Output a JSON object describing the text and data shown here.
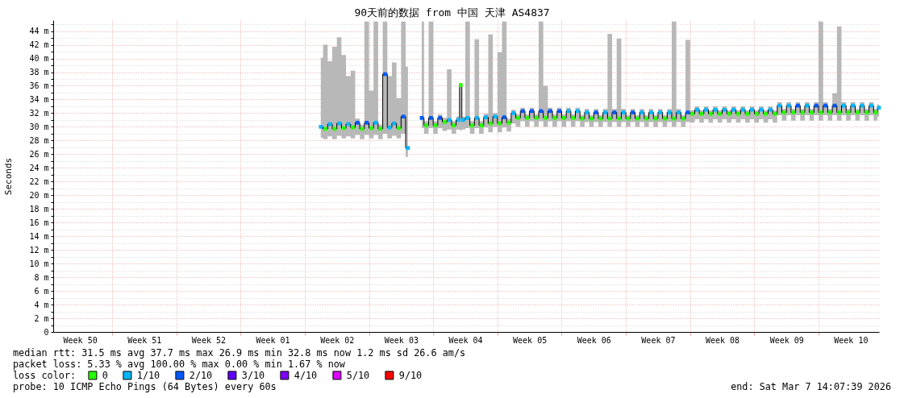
{
  "chart_data": {
    "type": "step",
    "title": "90天前的数据 from 中国 天津 AS4837",
    "ylabel": "Seconds",
    "legend_title": "loss color:",
    "annotations": [
      "median rtt:  31.5 ms avg  37.7 ms max  26.9 ms min  32.8 ms now  1.2 ms sd  26.6   am/s",
      "packet loss: 5.33 % avg  100.00 % max  0.00 % min   1.67 % now",
      "probe:       10 ICMP Echo Pings (64 Bytes) every 60s",
      "end: Sat Mar  7 14:07:39 2026"
    ],
    "xlim": [
      "2025-12-07T14:07",
      "2026-03-07T14:07"
    ],
    "ylim": [
      0,
      45.6
    ],
    "xticks": [
      {
        "value": "2025-12-10T12:00",
        "label": "Week 50"
      },
      {
        "value": "2025-12-14",
        "label": null
      },
      {
        "value": "2025-12-17T12:00",
        "label": "Week 51"
      },
      {
        "value": "2025-12-21",
        "label": null
      },
      {
        "value": "2025-12-24T12:00",
        "label": "Week 52"
      },
      {
        "value": "2025-12-28",
        "label": null
      },
      {
        "value": "2025-12-31T12:00",
        "label": "Week 01"
      },
      {
        "value": "2026-01-04",
        "label": null
      },
      {
        "value": "2026-01-07T12:00",
        "label": "Week 02"
      },
      {
        "value": "2026-01-11",
        "label": null
      },
      {
        "value": "2026-01-14T12:00",
        "label": "Week 03"
      },
      {
        "value": "2026-01-18",
        "label": null
      },
      {
        "value": "2026-01-21T12:00",
        "label": "Week 04"
      },
      {
        "value": "2026-01-25",
        "label": null
      },
      {
        "value": "2026-01-28T12:00",
        "label": "Week 05"
      },
      {
        "value": "2026-02-01",
        "label": null
      },
      {
        "value": "2026-02-04T12:00",
        "label": "Week 06"
      },
      {
        "value": "2026-02-08",
        "label": null
      },
      {
        "value": "2026-02-11T12:00",
        "label": "Week 07"
      },
      {
        "value": "2026-02-15",
        "label": null
      },
      {
        "value": "2026-02-18T12:00",
        "label": "Week 08"
      },
      {
        "value": "2026-02-22",
        "label": null
      },
      {
        "value": "2026-02-25T12:00",
        "label": "Week 09"
      },
      {
        "value": "2026-03-01",
        "label": null
      },
      {
        "value": "2026-03-04T12:00",
        "label": "Week 10"
      }
    ],
    "yticks": [
      0,
      {
        "value": 1,
        "label": null
      },
      {
        "value": 2,
        "label": "2 m"
      },
      {
        "value": 3,
        "label": null
      },
      {
        "value": 4,
        "label": "4 m"
      },
      {
        "value": 5,
        "label": null
      },
      {
        "value": 6,
        "label": "6 m"
      },
      {
        "value": 7,
        "label": null
      },
      {
        "value": 8,
        "label": "8 m"
      },
      {
        "value": 9,
        "label": null
      },
      {
        "value": 10,
        "label": "10 m"
      },
      {
        "value": 11,
        "label": null
      },
      {
        "value": 12,
        "label": "12 m"
      },
      {
        "value": 13,
        "label": null
      },
      {
        "value": 14,
        "label": "14 m"
      },
      {
        "value": 15,
        "label": null
      },
      {
        "value": 16,
        "label": "16 m"
      },
      {
        "value": 17,
        "label": null
      },
      {
        "value": 18,
        "label": "18 m"
      },
      {
        "value": 19,
        "label": null
      },
      {
        "value": 20,
        "label": "20 m"
      },
      {
        "value": 21,
        "label": null
      },
      {
        "value": 22,
        "label": "22 m"
      },
      {
        "value": 23,
        "label": null
      },
      {
        "value": 24,
        "label": "24 m"
      },
      {
        "value": 25,
        "label": null
      },
      {
        "value": 26,
        "label": "26 m"
      },
      {
        "value": 27,
        "label": null
      },
      {
        "value": 28,
        "label": "28 m"
      },
      {
        "value": 29,
        "label": null
      },
      {
        "value": 30,
        "label": "30 m"
      },
      {
        "value": 31,
        "label": null
      },
      {
        "value": 32,
        "label": "32 m"
      },
      {
        "value": 33,
        "label": null
      },
      {
        "value": 34,
        "label": "34 m"
      },
      {
        "value": 35,
        "label": null
      },
      {
        "value": 36,
        "label": "36 m"
      },
      {
        "value": 37,
        "label": null
      },
      {
        "value": 38,
        "label": "38 m"
      },
      {
        "value": 39,
        "label": null
      },
      {
        "value": 40,
        "label": "40 m"
      },
      {
        "value": 41,
        "label": null
      },
      {
        "value": 42,
        "label": "42 m"
      },
      {
        "value": 43,
        "label": null
      },
      {
        "value": 44,
        "label": "44 m"
      },
      {
        "value": 45,
        "label": null
      }
    ],
    "grid": true,
    "legend": "bottom left",
    "x": [
      "2026-01-05T18:00",
      "2026-01-06T06:00",
      "2026-01-06T18:00",
      "2026-01-07T06:00",
      "2026-01-07T18:00",
      "2026-01-08T06:00",
      "2026-01-08T18:00",
      "2026-01-09T06:00",
      "2026-01-09T18:00",
      "2026-01-10T06:00",
      "2026-01-10T18:00",
      "2026-01-11T06:00",
      "2026-01-11T18:00",
      "2026-01-12T06:00",
      "2026-01-12T18:00",
      "2026-01-13T06:00",
      "2026-01-13T18:00",
      "2026-01-14T06:00",
      "2026-01-14T18:00",
      "2026-01-15T06:00",
      "2026-01-15T18:00",
      "2026-01-16T06:00",
      "2026-01-16T18:00",
      "2026-01-17T06:00",
      "2026-01-17T18:00",
      "2026-01-18T06:00",
      "2026-01-18T18:00",
      "2026-01-19T06:00",
      "2026-01-19T18:00",
      "2026-01-20T06:00",
      "2026-01-20T18:00",
      "2026-01-21T00:00",
      "2026-01-21T06:00",
      "2026-01-21T18:00",
      "2026-01-22T06:00",
      "2026-01-22T18:00",
      "2026-01-23T06:00",
      "2026-01-23T18:00",
      "2026-01-24T06:00",
      "2026-01-24T18:00",
      "2026-01-25T06:00",
      "2026-01-25T18:00",
      "2026-01-26T06:00",
      "2026-01-26T18:00",
      "2026-01-27T06:00",
      "2026-01-27T18:00",
      "2026-01-28T06:00",
      "2026-01-28T18:00",
      "2026-01-29T06:00",
      "2026-01-29T18:00",
      "2026-01-30T06:00",
      "2026-01-30T18:00",
      "2026-01-31T06:00",
      "2026-01-31T18:00",
      "2026-02-01T06:00",
      "2026-02-01T18:00",
      "2026-02-02T06:00",
      "2026-02-02T18:00",
      "2026-02-03T06:00",
      "2026-02-03T18:00",
      "2026-02-04T06:00",
      "2026-02-04T18:00",
      "2026-02-05T06:00",
      "2026-02-05T18:00",
      "2026-02-06T06:00",
      "2026-02-06T18:00",
      "2026-02-07T06:00",
      "2026-02-07T18:00",
      "2026-02-08T06:00",
      "2026-02-08T18:00",
      "2026-02-09T06:00",
      "2026-02-09T18:00",
      "2026-02-10T06:00",
      "2026-02-10T18:00",
      "2026-02-11T06:00",
      "2026-02-11T18:00",
      "2026-02-12T06:00",
      "2026-02-12T18:00",
      "2026-02-13T06:00",
      "2026-02-13T18:00",
      "2026-02-14T06:00",
      "2026-02-14T18:00",
      "2026-02-15T06:00",
      "2026-02-15T18:00",
      "2026-02-16T06:00",
      "2026-02-16T18:00",
      "2026-02-17T06:00",
      "2026-02-17T18:00",
      "2026-02-18T06:00",
      "2026-02-18T18:00",
      "2026-02-19T06:00",
      "2026-02-19T18:00",
      "2026-02-20T06:00",
      "2026-02-20T18:00",
      "2026-02-21T06:00",
      "2026-02-21T18:00",
      "2026-02-22T06:00",
      "2026-02-22T18:00",
      "2026-02-23T06:00",
      "2026-02-23T18:00",
      "2026-02-24T06:00",
      "2026-02-24T18:00",
      "2026-02-25T06:00",
      "2026-02-25T18:00",
      "2026-02-26T06:00",
      "2026-02-26T18:00",
      "2026-02-27T06:00",
      "2026-02-27T18:00",
      "2026-02-28T06:00",
      "2026-02-28T18:00",
      "2026-03-01T06:00",
      "2026-03-01T18:00",
      "2026-03-02T06:00",
      "2026-03-02T18:00",
      "2026-03-03T06:00",
      "2026-03-03T18:00",
      "2026-03-04T06:00",
      "2026-03-04T18:00",
      "2026-03-05T06:00",
      "2026-03-05T18:00",
      "2026-03-06T06:00",
      "2026-03-06T18:00",
      "2026-03-07T06:00",
      "2026-03-07T14:00"
    ],
    "series": [
      {
        "color": "#000000",
        "values": [
          30.0,
          29.7,
          30.4,
          29.7,
          30.5,
          29.8,
          30.4,
          29.9,
          30.6,
          29.7,
          30.6,
          29.8,
          30.6,
          29.7,
          37.7,
          29.9,
          30.5,
          29.8,
          31.5,
          26.9,
          null,
          null,
          31.3,
          30.2,
          31.3,
          30.2,
          31.3,
          30.7,
          31.0,
          30.2,
          31.0,
          36.1,
          31.0,
          31.3,
          30.2,
          31.3,
          30.2,
          31.4,
          30.5,
          31.5,
          30.5,
          31.4,
          30.6,
          32.0,
          31.3,
          32.3,
          31.3,
          32.3,
          31.3,
          32.3,
          31.3,
          32.3,
          31.3,
          32.3,
          31.3,
          32.3,
          31.3,
          32.3,
          31.2,
          32.1,
          31.2,
          32.1,
          31.2,
          32.1,
          31.2,
          32.1,
          31.2,
          32.1,
          31.2,
          32.1,
          31.2,
          32.1,
          31.2,
          32.1,
          31.2,
          32.1,
          31.2,
          32.1,
          31.2,
          32.1,
          31.2,
          32.1,
          31.9,
          32.5,
          31.9,
          32.5,
          31.9,
          32.5,
          31.9,
          32.5,
          31.9,
          32.5,
          31.9,
          32.5,
          31.9,
          32.5,
          31.9,
          32.5,
          31.9,
          32.5,
          31.9,
          33.1,
          32.1,
          33.1,
          32.1,
          33.1,
          32.1,
          33.1,
          32.1,
          33.1,
          32.1,
          33.1,
          32.1,
          33.1,
          32.1,
          33.1,
          32.1,
          33.1,
          32.1,
          33.1,
          32.1,
          33.1,
          32.1,
          32.8
        ],
        "upper": [
          40.1,
          42.0,
          39.6,
          41.7,
          43.1,
          40.5,
          37.4,
          38.2,
          31.2,
          30.3,
          45.4,
          35.3,
          45.4,
          30.3,
          45.4,
          37.4,
          39.4,
          34.2,
          45.4,
          38.8,
          null,
          null,
          45.4,
          30.8,
          45.4,
          30.8,
          31.8,
          31.3,
          38.4,
          30.8,
          31.5,
          36.4,
          31.5,
          45.4,
          30.8,
          42.8,
          30.8,
          31.9,
          43.5,
          32.0,
          40.9,
          45.4,
          31.2,
          32.5,
          31.8,
          32.8,
          31.8,
          32.8,
          31.8,
          45.4,
          36.0,
          32.8,
          31.8,
          32.8,
          31.8,
          32.8,
          31.8,
          32.8,
          31.7,
          32.6,
          31.7,
          32.6,
          31.7,
          32.6,
          43.6,
          32.6,
          42.9,
          32.6,
          31.7,
          32.6,
          31.7,
          32.6,
          31.7,
          32.6,
          31.7,
          32.6,
          31.7,
          32.6,
          45.4,
          32.6,
          31.7,
          42.7,
          32.4,
          33.0,
          32.4,
          33.0,
          32.4,
          33.0,
          32.4,
          33.0,
          32.4,
          33.0,
          32.4,
          33.0,
          32.4,
          33.0,
          32.4,
          33.0,
          32.4,
          33.0,
          32.4,
          33.6,
          32.6,
          33.6,
          32.6,
          33.6,
          32.6,
          33.6,
          32.6,
          33.6,
          45.4,
          33.6,
          32.6,
          34.9,
          44.7,
          33.6,
          32.6,
          33.6,
          32.6,
          33.6,
          32.6,
          33.6,
          32.6,
          33.3
        ],
        "lower": [
          28.4,
          28.2,
          28.6,
          28.2,
          28.7,
          28.3,
          28.6,
          28.3,
          28.8,
          28.2,
          28.8,
          28.3,
          28.8,
          28.2,
          29.0,
          28.3,
          28.7,
          28.3,
          29.0,
          25.6,
          null,
          null,
          29.8,
          29.0,
          29.8,
          29.0,
          29.8,
          29.4,
          29.6,
          29.0,
          29.6,
          29.5,
          29.6,
          29.8,
          29.0,
          29.8,
          29.0,
          29.9,
          29.2,
          30.0,
          29.2,
          29.9,
          29.3,
          30.5,
          30.0,
          30.8,
          30.0,
          30.8,
          30.0,
          30.8,
          30.0,
          30.8,
          30.0,
          30.8,
          30.0,
          30.8,
          30.0,
          30.8,
          30.0,
          30.7,
          30.0,
          30.7,
          30.0,
          30.7,
          30.0,
          30.7,
          30.0,
          30.7,
          30.0,
          30.7,
          30.0,
          30.7,
          30.0,
          30.7,
          30.0,
          30.7,
          30.0,
          30.7,
          30.0,
          30.7,
          30.0,
          30.7,
          30.6,
          31.1,
          30.6,
          31.1,
          30.6,
          31.1,
          30.6,
          31.1,
          30.6,
          31.1,
          30.6,
          31.1,
          30.6,
          31.1,
          30.6,
          31.1,
          30.6,
          31.1,
          30.6,
          31.7,
          30.9,
          31.7,
          30.9,
          31.7,
          30.9,
          31.7,
          30.9,
          31.7,
          30.9,
          31.7,
          30.9,
          31.7,
          30.9,
          31.7,
          30.9,
          31.7,
          30.9,
          31.7,
          30.9,
          31.7,
          30.9,
          31.5
        ]
      },
      {
        "name": "0",
        "type": "scatter",
        "marker": "square",
        "color": "#26ff00",
        "x": [
          "2026-01-06T06:00",
          "2026-01-07T06:00",
          "2026-01-08T06:00",
          "2026-01-09T06:00",
          "2026-01-10T06:00",
          "2026-01-11T06:00",
          "2026-01-12T06:00",
          "2026-01-14T06:00",
          "2026-01-17T06:00",
          "2026-01-18T06:00",
          "2026-01-19T06:00",
          "2026-01-20T06:00",
          "2026-01-21T00:00",
          "2026-01-22T06:00",
          "2026-01-23T06:00",
          "2026-01-24T06:00",
          "2026-01-25T06:00",
          "2026-01-26T06:00",
          "2026-01-27T06:00",
          "2026-01-28T06:00",
          "2026-01-29T06:00",
          "2026-01-30T06:00",
          "2026-01-31T06:00",
          "2026-02-01T06:00",
          "2026-02-02T06:00",
          "2026-02-03T06:00",
          "2026-02-04T06:00",
          "2026-02-05T06:00",
          "2026-02-06T06:00",
          "2026-02-07T06:00",
          "2026-02-08T06:00",
          "2026-02-09T06:00",
          "2026-02-10T06:00",
          "2026-02-11T06:00",
          "2026-02-12T06:00",
          "2026-02-13T06:00",
          "2026-02-14T06:00",
          "2026-02-15T06:00",
          "2026-02-16T06:00",
          "2026-02-17T06:00",
          "2026-02-18T06:00",
          "2026-02-19T06:00",
          "2026-02-20T06:00",
          "2026-02-21T06:00",
          "2026-02-22T06:00",
          "2026-02-23T06:00",
          "2026-02-24T06:00",
          "2026-02-25T06:00",
          "2026-02-26T06:00",
          "2026-02-27T06:00",
          "2026-02-28T06:00",
          "2026-03-01T06:00",
          "2026-03-02T06:00",
          "2026-03-03T06:00",
          "2026-03-04T06:00",
          "2026-03-05T06:00",
          "2026-03-06T06:00",
          "2026-03-07T06:00"
        ],
        "values": [
          29.7,
          29.7,
          29.8,
          29.9,
          29.7,
          29.8,
          29.7,
          29.8,
          30.2,
          30.2,
          30.7,
          30.2,
          36.1,
          30.2,
          30.2,
          30.5,
          30.5,
          30.6,
          31.3,
          31.3,
          31.3,
          31.3,
          31.3,
          31.3,
          31.3,
          31.2,
          31.2,
          31.2,
          31.2,
          31.2,
          31.2,
          31.2,
          31.2,
          31.2,
          31.2,
          31.2,
          31.2,
          31.9,
          31.9,
          31.9,
          31.9,
          31.9,
          31.9,
          31.9,
          31.9,
          31.9,
          31.9,
          32.1,
          32.1,
          32.1,
          32.1,
          32.1,
          32.1,
          32.1,
          32.1,
          32.1,
          32.1,
          32.1
        ]
      },
      {
        "name": "1/10",
        "type": "scatter",
        "marker": "square",
        "color": "#00b8ff",
        "x": [
          "2026-01-05T18:00",
          "2026-01-06T18:00",
          "2026-01-07T18:00",
          "2026-01-08T18:00",
          "2026-01-11T18:00",
          "2026-01-13T06:00",
          "2026-01-13T18:00",
          "2026-01-15T06:00",
          "2026-01-19T18:00",
          "2026-01-20T18:00",
          "2026-01-21T06:00",
          "2026-01-21T18:00",
          "2026-01-22T18:00",
          "2026-01-23T18:00",
          "2026-01-24T18:00",
          "2026-01-26T18:00",
          "2026-02-01T18:00",
          "2026-02-02T18:00",
          "2026-02-03T18:00",
          "2026-02-05T18:00",
          "2026-02-07T18:00",
          "2026-02-09T18:00",
          "2026-02-10T18:00",
          "2026-02-11T18:00",
          "2026-02-12T18:00",
          "2026-02-13T18:00",
          "2026-02-15T18:00",
          "2026-02-16T18:00",
          "2026-02-17T18:00",
          "2026-02-18T18:00",
          "2026-02-19T18:00",
          "2026-02-20T18:00",
          "2026-02-21T18:00",
          "2026-02-22T18:00",
          "2026-02-23T18:00",
          "2026-02-24T18:00",
          "2026-02-25T18:00",
          "2026-02-27T18:00",
          "2026-03-03T18:00",
          "2026-03-04T18:00",
          "2026-03-05T18:00",
          "2026-03-06T18:00",
          "2026-03-07T14:00"
        ],
        "values": [
          30.0,
          30.4,
          30.5,
          30.4,
          30.6,
          29.9,
          30.5,
          26.9,
          31.0,
          31.0,
          31.0,
          31.3,
          31.3,
          31.4,
          31.5,
          32.0,
          32.3,
          32.3,
          32.1,
          32.1,
          32.1,
          32.1,
          32.1,
          32.1,
          32.1,
          32.1,
          32.5,
          32.5,
          32.5,
          32.5,
          32.5,
          32.5,
          32.5,
          32.5,
          32.5,
          33.1,
          33.1,
          33.1,
          33.1,
          33.1,
          33.1,
          33.1,
          32.8
        ]
      },
      {
        "name": "2/10",
        "type": "scatter",
        "marker": "square",
        "color": "#0059ff",
        "x": [
          "2026-01-09T18:00",
          "2026-01-10T18:00",
          "2026-01-12T18:00",
          "2026-01-14T18:00",
          "2026-01-16T18:00",
          "2026-01-17T18:00",
          "2026-01-18T18:00",
          "2026-01-25T18:00",
          "2026-01-27T18:00",
          "2026-01-28T18:00",
          "2026-01-29T18:00",
          "2026-01-30T18:00",
          "2026-01-31T18:00",
          "2026-02-04T18:00",
          "2026-02-06T18:00",
          "2026-02-08T18:00",
          "2026-02-14T18:00",
          "2026-02-26T18:00",
          "2026-02-28T18:00",
          "2026-03-01T18:00",
          "2026-03-02T18:00"
        ],
        "values": [
          30.6,
          30.6,
          37.7,
          31.5,
          31.3,
          31.3,
          31.3,
          31.4,
          32.3,
          32.3,
          32.3,
          32.3,
          32.3,
          32.1,
          32.1,
          32.1,
          32.1,
          33.1,
          33.1,
          33.1,
          33.1
        ]
      },
      {
        "name": "3/10",
        "type": "scatter",
        "marker": "square",
        "color": "#5e00ff",
        "values": [
          null,
          null,
          null,
          null,
          null,
          null,
          null,
          null,
          null,
          null,
          null,
          null,
          null,
          null,
          null,
          null,
          null,
          null,
          null,
          null,
          null,
          null,
          null,
          null,
          null,
          null,
          null,
          null,
          null,
          null,
          null,
          null,
          null,
          null,
          null,
          null,
          null,
          null,
          null,
          null,
          null,
          null,
          null,
          null,
          null,
          null,
          null,
          null,
          null,
          null,
          null,
          null,
          null,
          null,
          null,
          null,
          null,
          null,
          null,
          null,
          null,
          null,
          null,
          null,
          null,
          null,
          null,
          null,
          null,
          null,
          null,
          null,
          null,
          null,
          null,
          null,
          null,
          null,
          null,
          null,
          null,
          null,
          null,
          null,
          null,
          null,
          null,
          null,
          null,
          null,
          null,
          null,
          null,
          null,
          null,
          null,
          null,
          null,
          null,
          null,
          null,
          null,
          null,
          null,
          null,
          null,
          null,
          null,
          null,
          null,
          null,
          null,
          null,
          null,
          null,
          null,
          null,
          null,
          null,
          null,
          null,
          null,
          null,
          null
        ]
      },
      {
        "name": "4/10",
        "type": "scatter",
        "marker": "square",
        "color": "#7e00ff",
        "values": [
          null,
          null,
          null,
          null,
          null,
          null,
          null,
          null,
          null,
          null,
          null,
          null,
          null,
          null,
          null,
          null,
          null,
          null,
          null,
          null,
          null,
          null,
          null,
          null,
          null,
          null,
          null,
          null,
          null,
          null,
          null,
          null,
          null,
          null,
          null,
          null,
          null,
          null,
          null,
          null,
          null,
          null,
          null,
          null,
          null,
          null,
          null,
          null,
          null,
          null,
          null,
          null,
          null,
          null,
          null,
          null,
          null,
          null,
          null,
          null,
          null,
          null,
          null,
          null,
          null,
          null,
          null,
          null,
          null,
          null,
          null,
          null,
          null,
          null,
          null,
          null,
          null,
          null,
          null,
          null,
          null,
          null,
          null,
          null,
          null,
          null,
          null,
          null,
          null,
          null,
          null,
          null,
          null,
          null,
          null,
          null,
          null,
          null,
          null,
          null,
          null,
          null,
          null,
          null,
          null,
          null,
          null,
          null,
          null,
          null,
          null,
          null,
          null,
          null,
          null,
          null,
          null,
          null,
          null,
          null,
          null,
          null,
          null,
          null
        ]
      },
      {
        "name": "5/10",
        "type": "scatter",
        "marker": "square",
        "color": "#dd00ff",
        "values": [
          null,
          null,
          null,
          null,
          null,
          null,
          null,
          null,
          null,
          null,
          null,
          null,
          null,
          null,
          null,
          null,
          null,
          null,
          null,
          null,
          null,
          null,
          null,
          null,
          null,
          null,
          null,
          null,
          null,
          null,
          null,
          null,
          null,
          null,
          null,
          null,
          null,
          null,
          null,
          null,
          null,
          null,
          null,
          null,
          null,
          null,
          null,
          null,
          null,
          null,
          null,
          null,
          null,
          null,
          null,
          null,
          null,
          null,
          null,
          null,
          null,
          null,
          null,
          null,
          null,
          null,
          null,
          null,
          null,
          null,
          null,
          null,
          null,
          null,
          null,
          null,
          null,
          null,
          null,
          null,
          null,
          null,
          null,
          null,
          null,
          null,
          null,
          null,
          null,
          null,
          null,
          null,
          null,
          null,
          null,
          null,
          null,
          null,
          null,
          null,
          null,
          null,
          null,
          null,
          null,
          null,
          null,
          null,
          null,
          null,
          null,
          null,
          null,
          null,
          null,
          null,
          null,
          null,
          null,
          null,
          null,
          null,
          null,
          null
        ]
      },
      {
        "name": "9/10",
        "type": "scatter",
        "marker": "square",
        "color": "#ff0000",
        "values": [
          null,
          null,
          null,
          null,
          null,
          null,
          null,
          null,
          null,
          null,
          null,
          null,
          null,
          null,
          null,
          null,
          null,
          null,
          null,
          null,
          null,
          null,
          null,
          null,
          null,
          null,
          null,
          null,
          null,
          null,
          null,
          null,
          null,
          null,
          null,
          null,
          null,
          null,
          null,
          null,
          null,
          null,
          null,
          null,
          null,
          null,
          null,
          null,
          null,
          null,
          null,
          null,
          null,
          null,
          null,
          null,
          null,
          null,
          null,
          null,
          null,
          null,
          null,
          null,
          null,
          null,
          null,
          null,
          null,
          null,
          null,
          null,
          null,
          null,
          null,
          null,
          null,
          null,
          null,
          null,
          null,
          null,
          null,
          null,
          null,
          null,
          null,
          null,
          null,
          null,
          null,
          null,
          null,
          null,
          null,
          null,
          null,
          null,
          null,
          null,
          null,
          null,
          null,
          null,
          null,
          null,
          null,
          null,
          null,
          null,
          null,
          null,
          null,
          null,
          null,
          null,
          null,
          null,
          null,
          null,
          null,
          null,
          null,
          null
        ]
      }
    ]
  }
}
